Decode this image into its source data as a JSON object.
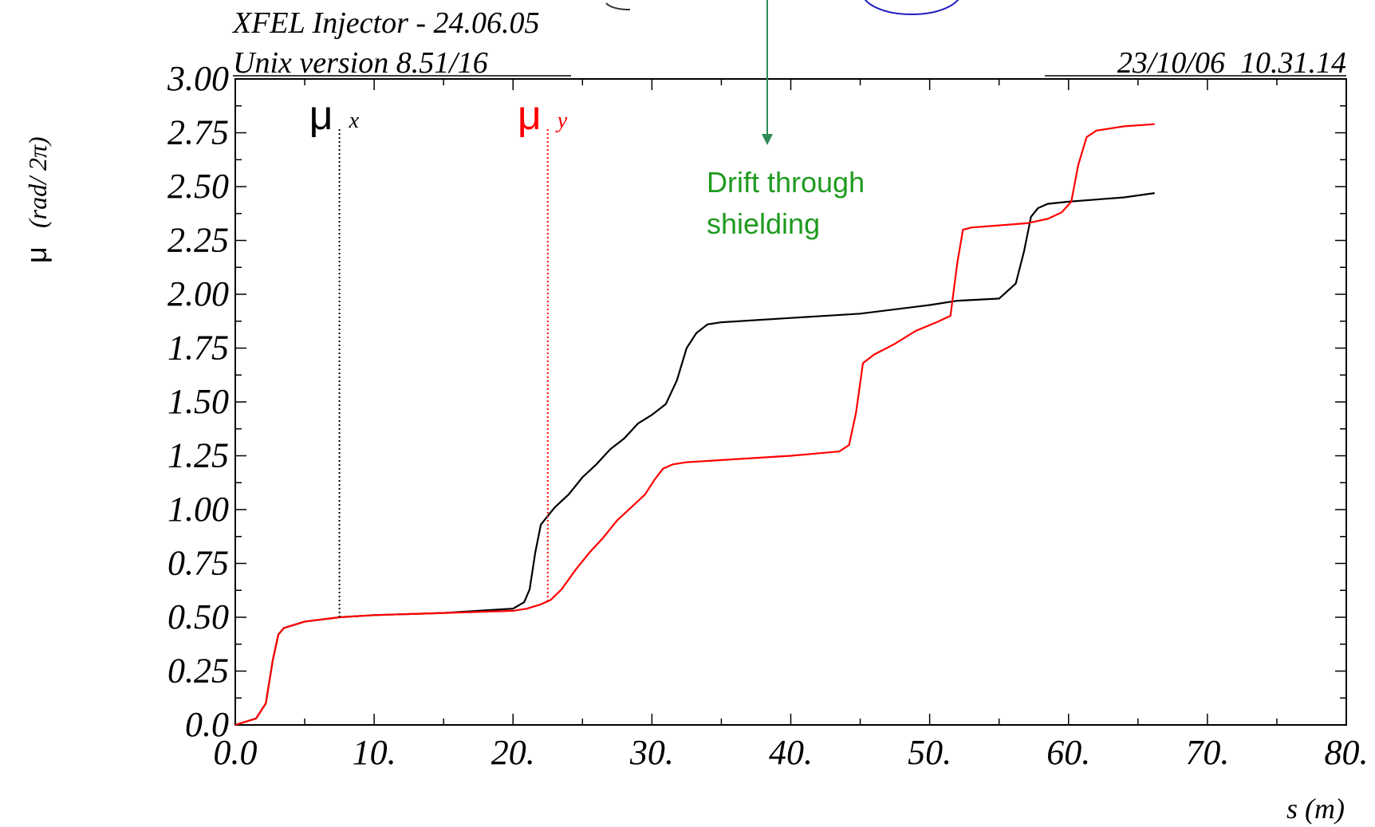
{
  "chart_data": {
    "type": "line",
    "title": "XFEL Injector - 24.06.05",
    "subtitle": "Unix version 8.51/16",
    "timestamp": "23/10/06  10.31.14",
    "xlabel": "s (m)",
    "ylabel_symbol": "μ",
    "ylabel_units": "(rad/ 2π)",
    "xlim": [
      0,
      80
    ],
    "ylim": [
      0,
      3
    ],
    "x_tick_labels": [
      "0.0",
      "10.",
      "20.",
      "30.",
      "40.",
      "50.",
      "60.",
      "70.",
      "80."
    ],
    "x_tick_values": [
      0,
      10,
      20,
      30,
      40,
      50,
      60,
      70,
      80
    ],
    "y_tick_labels": [
      "0.0",
      "0.25",
      "0.50",
      "0.75",
      "1.00",
      "1.25",
      "1.50",
      "1.75",
      "2.00",
      "2.25",
      "2.50",
      "2.75",
      "3.00"
    ],
    "y_tick_values": [
      0,
      0.25,
      0.5,
      0.75,
      1.0,
      1.25,
      1.5,
      1.75,
      2.0,
      2.25,
      2.5,
      2.75,
      3.0
    ],
    "grid": false,
    "series": [
      {
        "color": "#000000",
        "x": [
          0,
          1.5,
          2.2,
          2.7,
          3.1,
          3.5,
          5,
          7.5,
          10,
          15,
          20,
          20.8,
          21.2,
          21.6,
          22.0,
          22.5,
          23,
          24,
          25,
          26,
          27,
          28,
          29,
          30,
          31,
          31.8,
          32.5,
          33.2,
          34,
          35,
          40,
          45,
          50,
          52,
          55,
          56.2,
          56.8,
          57.3,
          57.8,
          58.5,
          60,
          62,
          64,
          66.2
        ],
        "y": [
          0,
          0.03,
          0.1,
          0.3,
          0.42,
          0.45,
          0.48,
          0.5,
          0.51,
          0.52,
          0.54,
          0.57,
          0.63,
          0.8,
          0.93,
          0.97,
          1.01,
          1.07,
          1.15,
          1.21,
          1.28,
          1.33,
          1.4,
          1.44,
          1.49,
          1.6,
          1.75,
          1.82,
          1.86,
          1.87,
          1.89,
          1.91,
          1.95,
          1.97,
          1.98,
          2.05,
          2.2,
          2.36,
          2.4,
          2.42,
          2.43,
          2.44,
          2.45,
          2.47
        ]
      },
      {
        "color": "#ff0000",
        "x": [
          0,
          1.5,
          2.2,
          2.7,
          3.1,
          3.5,
          5,
          7.5,
          10,
          15,
          20,
          21,
          22,
          22.7,
          23.5,
          24.5,
          25.5,
          26.5,
          27.5,
          28.5,
          29.5,
          30.2,
          30.8,
          31.5,
          32.5,
          35,
          40,
          43.5,
          44.2,
          44.7,
          45.2,
          46,
          47.5,
          49,
          50.5,
          51.5,
          52,
          52.4,
          53,
          55,
          57,
          58.5,
          59.5,
          60.2,
          60.7,
          61.3,
          62,
          64,
          66.2
        ],
        "y": [
          0,
          0.03,
          0.1,
          0.3,
          0.42,
          0.45,
          0.48,
          0.5,
          0.51,
          0.52,
          0.53,
          0.54,
          0.56,
          0.58,
          0.63,
          0.72,
          0.8,
          0.87,
          0.95,
          1.01,
          1.07,
          1.14,
          1.19,
          1.21,
          1.22,
          1.23,
          1.25,
          1.27,
          1.3,
          1.45,
          1.68,
          1.72,
          1.77,
          1.83,
          1.87,
          1.9,
          2.15,
          2.3,
          2.31,
          2.32,
          2.33,
          2.35,
          2.38,
          2.43,
          2.6,
          2.73,
          2.76,
          2.78,
          2.79
        ]
      }
    ],
    "legend": [
      {
        "symbol": "μ",
        "subscript": "x",
        "color": "#000000",
        "marker_x": 7.5
      },
      {
        "symbol": "μ",
        "subscript": "y",
        "color": "#ff0000",
        "marker_x": 22.5
      }
    ],
    "annotation": {
      "text_line1": "Drift through",
      "text_line2": "shielding",
      "color": "#1f9a1f",
      "arrow_color": "#2e8b57"
    }
  }
}
